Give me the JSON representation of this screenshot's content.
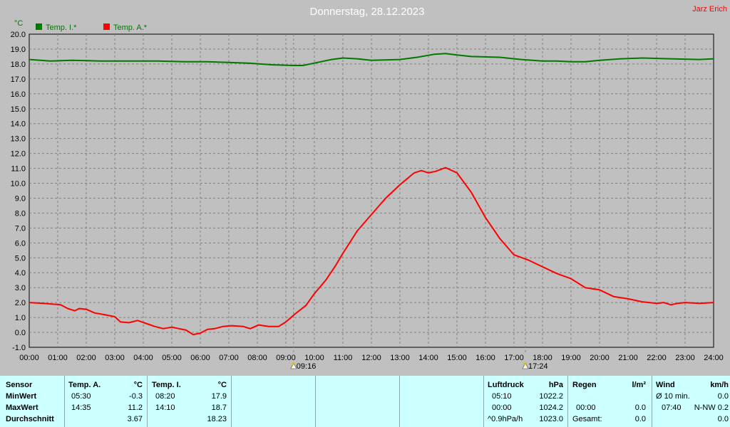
{
  "title": "Donnerstag, 28.12.2023",
  "author": "Jarz Erich",
  "colors": {
    "indoor": "#007800",
    "outdoor": "#ff0000",
    "background": "#c0c0c0",
    "stats_bg": "#ccffff"
  },
  "chart_data": {
    "type": "line",
    "title": "Donnerstag, 28.12.2023",
    "ylabel": "°C",
    "xlabel": "",
    "ylim": [
      -1.0,
      20.0
    ],
    "xlim": [
      0,
      24
    ],
    "grid": true,
    "legend_position": "top-left",
    "y_ticks": [
      "20.0",
      "19.0",
      "18.0",
      "17.0",
      "16.0",
      "15.0",
      "14.0",
      "13.0",
      "12.0",
      "11.0",
      "10.0",
      "9.0",
      "8.0",
      "7.0",
      "6.0",
      "5.0",
      "4.0",
      "3.0",
      "2.0",
      "1.0",
      "0.0",
      "-1.0"
    ],
    "x_ticks": [
      "00:00",
      "01:00",
      "02:00",
      "03:00",
      "04:00",
      "05:00",
      "06:00",
      "07:00",
      "08:00",
      "09:00",
      "10:00",
      "11:00",
      "12:00",
      "13:00",
      "14:00",
      "15:00",
      "16:00",
      "17:00",
      "18:00",
      "19:00",
      "20:00",
      "21:00",
      "22:00",
      "23:00",
      "24:00"
    ],
    "markers": [
      {
        "label": "09:16",
        "x": 9.27,
        "symbol": "sunrise"
      },
      {
        "label": "17:24",
        "x": 17.4,
        "symbol": "sunset"
      }
    ],
    "series": [
      {
        "name": "Temp. I.*",
        "color": "#007800",
        "x": [
          0,
          0.75,
          1.5,
          2.5,
          3.5,
          4.5,
          5.5,
          6.25,
          7,
          7.75,
          8.5,
          9.25,
          9.6,
          10.1,
          10.6,
          11,
          11.5,
          12,
          13,
          13.6,
          14.2,
          14.6,
          15,
          15.5,
          16.5,
          17.25,
          18,
          18.5,
          19,
          19.5,
          20,
          20.75,
          21.5,
          22.5,
          23.5,
          24
        ],
        "y": [
          18.3,
          18.2,
          18.25,
          18.2,
          18.2,
          18.2,
          18.15,
          18.15,
          18.1,
          18.05,
          17.95,
          17.9,
          17.9,
          18.1,
          18.3,
          18.4,
          18.35,
          18.25,
          18.3,
          18.45,
          18.65,
          18.7,
          18.6,
          18.5,
          18.45,
          18.3,
          18.2,
          18.2,
          18.15,
          18.15,
          18.25,
          18.35,
          18.4,
          18.35,
          18.3,
          18.35
        ]
      },
      {
        "name": "Temp. A.*",
        "color": "#ff0000",
        "x": [
          0,
          0.5,
          0.8,
          1.1,
          1.35,
          1.6,
          1.75,
          2,
          2.3,
          2.6,
          3,
          3.2,
          3.5,
          3.8,
          4.1,
          4.4,
          4.7,
          5,
          5.25,
          5.5,
          5.75,
          6,
          6.25,
          6.5,
          6.8,
          7.1,
          7.5,
          7.75,
          8.05,
          8.4,
          8.75,
          9,
          9.3,
          9.7,
          10,
          10.4,
          10.75,
          11,
          11.5,
          12,
          12.5,
          13,
          13.5,
          13.75,
          14,
          14.25,
          14.6,
          15,
          15.5,
          16,
          16.5,
          17,
          17.5,
          18,
          18.5,
          19,
          19.5,
          20,
          20.5,
          21,
          21.5,
          22,
          22.25,
          22.5,
          22.75,
          23,
          23.5,
          24
        ],
        "y": [
          2.0,
          1.95,
          1.9,
          1.85,
          1.6,
          1.45,
          1.6,
          1.55,
          1.3,
          1.2,
          1.05,
          0.7,
          0.65,
          0.8,
          0.6,
          0.4,
          0.25,
          0.35,
          0.25,
          0.15,
          -0.15,
          -0.05,
          0.2,
          0.25,
          0.4,
          0.45,
          0.4,
          0.25,
          0.5,
          0.4,
          0.4,
          0.7,
          1.2,
          1.8,
          2.6,
          3.5,
          4.5,
          5.3,
          6.8,
          7.9,
          9.0,
          9.9,
          10.7,
          10.85,
          10.7,
          10.8,
          11.05,
          10.7,
          9.4,
          7.7,
          6.3,
          5.2,
          4.85,
          4.4,
          3.95,
          3.6,
          3.0,
          2.85,
          2.4,
          2.25,
          2.05,
          1.95,
          2.0,
          1.85,
          1.95,
          2.0,
          1.95,
          2.0
        ]
      }
    ]
  },
  "stats": {
    "sensor": {
      "header": "Sensor",
      "rows": [
        "MinWert",
        "MaxWert",
        "Durchschnitt"
      ]
    },
    "temp_a": {
      "header": "Temp. A.",
      "unit": "°C",
      "rows": [
        {
          "time": "05:30",
          "value": "-0.3"
        },
        {
          "time": "14:35",
          "value": "11.2"
        },
        {
          "time": "",
          "value": "3.67"
        }
      ]
    },
    "temp_i": {
      "header": "Temp. I.",
      "unit": "°C",
      "rows": [
        {
          "time": "08:20",
          "value": "17.9"
        },
        {
          "time": "14:10",
          "value": "18.7"
        },
        {
          "time": "",
          "value": "18.23"
        }
      ]
    },
    "luftdruck": {
      "header": "Luftdruck",
      "unit": "hPa",
      "rows": [
        {
          "time": "05:10",
          "value": "1022.2"
        },
        {
          "time": "00:00",
          "value": "1024.2"
        },
        {
          "time": "^0.9hPa/h",
          "value": "1023.0"
        }
      ]
    },
    "regen": {
      "header": "Regen",
      "unit": "l/m²",
      "rows": [
        {
          "time": "",
          "value": ""
        },
        {
          "time": "00:00",
          "value": "0.0"
        },
        {
          "time": "Gesamt:",
          "value": "0.0"
        }
      ]
    },
    "wind": {
      "header": "Wind",
      "unit": "km/h",
      "rows": [
        {
          "time": "Ø 10 min.",
          "value": "0.0"
        },
        {
          "time": "07:40",
          "value": "N-NW 0.2"
        },
        {
          "time": "",
          "value": "0.0"
        }
      ]
    }
  }
}
